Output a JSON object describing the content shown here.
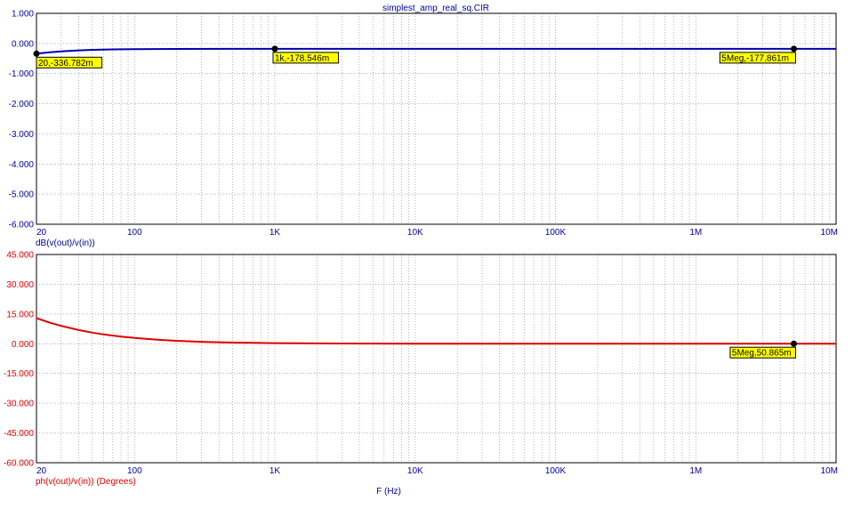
{
  "title": "simplest_amp_real_sq.CIR",
  "x_axis_label": "F (Hz)",
  "colors": {
    "axis_text": "#0000a0",
    "gain_trace": "#0000a8",
    "phase_trace": "#e00000",
    "phase_text": "#e00000",
    "grid": "#888888",
    "frame": "#000000",
    "tag_fill": "#ffff00"
  },
  "chart_data": [
    {
      "type": "line",
      "name": "gain",
      "ylabel": "dB(v(out)/v(in))",
      "x_scale": "log",
      "xlim": [
        20,
        10000000
      ],
      "ylim": [
        -6,
        1
      ],
      "y_ticks": [
        1,
        0,
        -1,
        -2,
        -3,
        -4,
        -5,
        -6
      ],
      "y_tick_labels": [
        "1.000",
        "0.000",
        "-1.000",
        "-2.000",
        "-3.000",
        "-4.000",
        "-5.000",
        "-6.000"
      ],
      "x_ticks": [
        20,
        100,
        1000,
        10000,
        100000,
        1000000,
        10000000
      ],
      "x_tick_labels": [
        "20",
        "100",
        "1K",
        "10K",
        "100K",
        "1M",
        "10M"
      ],
      "grid": true,
      "series": [
        {
          "x": [
            20,
            25,
            30,
            40,
            50,
            70,
            100,
            200,
            500,
            1000,
            10000,
            100000,
            1000000,
            5000000,
            10000000
          ],
          "y": [
            -0.337,
            -0.29,
            -0.26,
            -0.23,
            -0.21,
            -0.195,
            -0.186,
            -0.181,
            -0.179,
            -0.1785,
            -0.178,
            -0.178,
            -0.178,
            -0.178,
            -0.178
          ]
        }
      ],
      "markers": [
        {
          "x": 20,
          "y": -0.336782,
          "label": "20,-336.782m"
        },
        {
          "x": 1000,
          "y": -0.178546,
          "label": "1k,-178.546m"
        },
        {
          "x": 5000000,
          "y": -0.177861,
          "label": "5Meg,-177.861m"
        }
      ]
    },
    {
      "type": "line",
      "name": "phase",
      "ylabel": "ph(v(out)/v(in)) (Degrees)",
      "x_scale": "log",
      "xlim": [
        20,
        10000000
      ],
      "ylim": [
        -60,
        45
      ],
      "y_ticks": [
        45,
        30,
        15,
        0,
        -15,
        -30,
        -45,
        -60
      ],
      "y_tick_labels": [
        "45.000",
        "30.000",
        "15.000",
        "0.000",
        "-15.000",
        "-30.000",
        "-45.000",
        "-60.000"
      ],
      "x_ticks": [
        20,
        100,
        1000,
        10000,
        100000,
        1000000,
        10000000
      ],
      "x_tick_labels": [
        "20",
        "100",
        "1K",
        "10K",
        "100K",
        "1M",
        "10M"
      ],
      "grid": true,
      "series": [
        {
          "x": [
            20,
            25,
            30,
            40,
            50,
            60,
            70,
            80,
            100,
            150,
            200,
            300,
            500,
            700,
            1000,
            2000,
            10000,
            100000,
            1000000,
            5000000,
            10000000
          ],
          "y": [
            12.9,
            10.6,
            9.0,
            6.9,
            5.6,
            4.7,
            4.1,
            3.6,
            2.9,
            1.95,
            1.47,
            0.98,
            0.59,
            0.42,
            0.3,
            0.16,
            0.06,
            0.051,
            0.051,
            0.050865,
            0.05
          ]
        }
      ],
      "markers": [
        {
          "x": 5000000,
          "y": 0.050865,
          "label": "5Meg,50.865m"
        }
      ]
    }
  ]
}
